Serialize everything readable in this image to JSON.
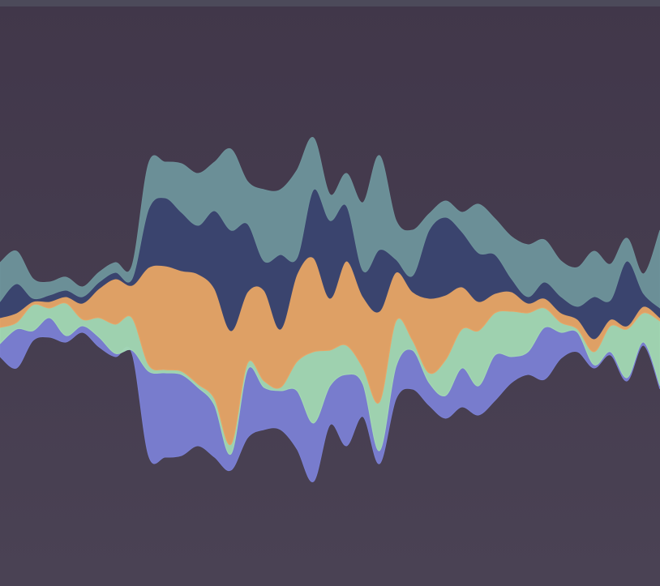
{
  "chart_data": {
    "type": "area",
    "layout": "streamgraph",
    "title": "",
    "xlabel": "",
    "ylabel": "",
    "axes_visible": false,
    "grid": false,
    "legend": "none",
    "x": [
      0,
      1,
      2,
      3,
      4,
      5,
      6,
      7,
      8,
      9,
      10,
      11,
      12,
      13,
      14,
      15,
      16,
      17,
      18,
      19,
      20,
      21,
      22,
      23,
      24,
      25,
      26,
      27,
      28,
      29,
      30,
      31,
      32,
      33,
      34,
      35,
      36,
      37,
      38,
      39,
      40
    ],
    "series": [
      {
        "color": "#7b80d4",
        "values": [
          0.4,
          1.2,
          0.3,
          0.6,
          0.2,
          0.2,
          0.3,
          0.1,
          0.1,
          2.6,
          2.6,
          2.5,
          1.8,
          1.6,
          0.5,
          2.1,
          1.3,
          1.2,
          1.8,
          1.8,
          1.2,
          2.2,
          1.0,
          0.4,
          1.0,
          1.2,
          0.7,
          0.7,
          1.2,
          0.9,
          1.4,
          0.8,
          0.7,
          1.6,
          0.8,
          0.6,
          0.1,
          0.1,
          0.1,
          0.1,
          0.1
        ]
      },
      {
        "color": "#a3d9b4",
        "values": [
          0.5,
          0.2,
          0.8,
          0.3,
          1.0,
          0.2,
          0.6,
          0.9,
          1.0,
          0.2,
          0.1,
          0.1,
          0.1,
          0.2,
          0.3,
          0.2,
          0.2,
          0.1,
          0.9,
          2.2,
          1.1,
          0.9,
          0.5,
          1.5,
          1.4,
          0.3,
          0.3,
          1.1,
          1.2,
          1.7,
          1.3,
          1.4,
          1.2,
          0.6,
          0.3,
          0.1,
          0.4,
          0.8,
          1.5,
          0.9,
          2.0
        ]
      },
      {
        "color": "#e7a566",
        "values": [
          0.3,
          0.3,
          0.1,
          0.2,
          0.2,
          0.5,
          0.9,
          1.4,
          1.0,
          3.0,
          3.2,
          3.1,
          3.4,
          3.4,
          3.5,
          2.2,
          2.8,
          1.8,
          2.7,
          2.9,
          1.6,
          2.6,
          2.2,
          2.8,
          1.5,
          1.5,
          2.3,
          2.0,
          1.3,
          0.9,
          0.6,
          0.6,
          0.3,
          0.3,
          0.3,
          0.3,
          0.4,
          0.2,
          0.1,
          0.2,
          0.1
        ]
      },
      {
        "color": "#3a4570",
        "values": [
          0.5,
          0.9,
          0.1,
          0.2,
          0.2,
          0.2,
          0.2,
          0.2,
          0.2,
          1.8,
          2.1,
          1.8,
          1.5,
          2.4,
          3.1,
          2.1,
          0.9,
          2.3,
          0.5,
          2.1,
          2.4,
          1.7,
          0.8,
          1.9,
          0.4,
          0.5,
          2.1,
          2.4,
          1.7,
          1.5,
          1.2,
          0.4,
          0.2,
          0.5,
          0.5,
          0.4,
          1.3,
          0.6,
          2.0,
          0.4,
          0.3
        ]
      },
      {
        "color": "#6e939b",
        "values": [
          1.2,
          1.0,
          0.6,
          0.4,
          0.4,
          0.3,
          0.3,
          0.3,
          0.4,
          1.4,
          1.1,
          1.5,
          1.6,
          1.5,
          2.5,
          1.3,
          2.2,
          2.0,
          2.7,
          1.6,
          0.8,
          1.0,
          2.1,
          2.9,
          1.2,
          1.4,
          0.5,
          0.5,
          0.6,
          1.5,
          1.1,
          1.3,
          1.6,
          1.3,
          1.1,
          1.2,
          1.4,
          1.1,
          0.7,
          0.6,
          2.4
        ]
      }
    ]
  }
}
